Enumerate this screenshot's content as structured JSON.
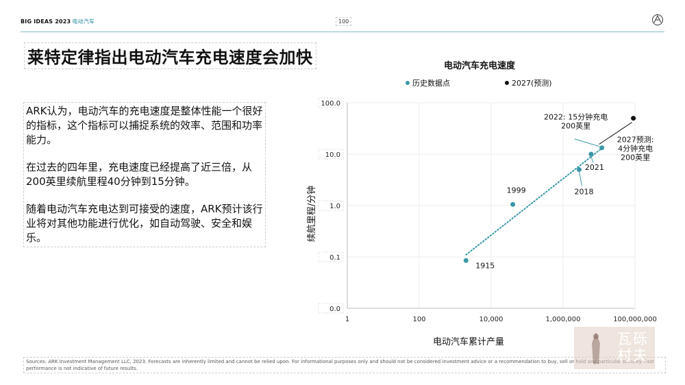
{
  "header": {
    "brand": "BIG IDEAS 2023",
    "brand_sub": "电动汽车",
    "page_number": "100"
  },
  "title": "莱特定律指出电动汽车充电速度会加快",
  "body_paragraphs": [
    "ARK认为，电动汽车的充电速度是整体性能一个很好的指标，这个指标可以捕捉系统的效率、范围和功率能力。",
    "在过去的四年里，充电速度已经提高了近三倍，从200英里续航里程40分钟到15分钟。",
    "随着电动汽车充电达到可接受的速度，ARK预计该行业将对其他功能进行优化，如自动驾驶、安全和娱乐。"
  ],
  "footer": "Sources: ARK Investment Management LLC, 2023. Forecasts are inherently limited and cannot be relied upon. For informational purposes only and should not be considered investment advice or a recommendation to buy, sell or hold any particular security. Past performance is not indicative of future results.",
  "watermark": {
    "text": "瓦砾村夫"
  },
  "colors": {
    "historical": "#3a97a8",
    "forecast": "#111111",
    "accent": "#2f8ea3"
  },
  "chart_data": {
    "type": "scatter",
    "title": "电动汽车充电速度",
    "xlabel": "电动汽车累计产量",
    "ylabel": "续航里程/分钟",
    "x_scale": "log",
    "y_scale": "log",
    "xlim": [
      1,
      100000000
    ],
    "ylim": [
      0.01,
      100
    ],
    "x_ticks": [
      {
        "value": 1,
        "label": "1"
      },
      {
        "value": 100,
        "label": "100"
      },
      {
        "value": 10000,
        "label": "10,000"
      },
      {
        "value": 1000000,
        "label": "1,000,000"
      },
      {
        "value": 100000000,
        "label": "100,000,000"
      }
    ],
    "y_ticks": [
      {
        "value": 0.01,
        "label": "0.0"
      },
      {
        "value": 0.1,
        "label": "0.1"
      },
      {
        "value": 1,
        "label": "1.0"
      },
      {
        "value": 10,
        "label": "10.0"
      },
      {
        "value": 100,
        "label": "100.0"
      }
    ],
    "grid": true,
    "legend_position": "top",
    "series": [
      {
        "name": "历史数据点",
        "color": "#3a97a8",
        "points": [
          {
            "x": 2000,
            "y": 0.085,
            "label": "1915"
          },
          {
            "x": 40000,
            "y": 1.05,
            "label": "1999"
          },
          {
            "x": 2800000,
            "y": 5,
            "label": "2018"
          },
          {
            "x": 6000000,
            "y": 10,
            "label": "2021"
          },
          {
            "x": 12000000,
            "y": 13.3,
            "label": "2022: 15分钟充电\n200英里"
          }
        ]
      },
      {
        "name": "2027(预测)",
        "color": "#111111",
        "points": [
          {
            "x": 90000000,
            "y": 50,
            "label": "2027预测:\n4分钟充电\n200英里"
          }
        ]
      }
    ],
    "trendline": {
      "from": {
        "x": 2000,
        "y": 0.11
      },
      "to": {
        "x": 12000000,
        "y": 13
      }
    }
  }
}
